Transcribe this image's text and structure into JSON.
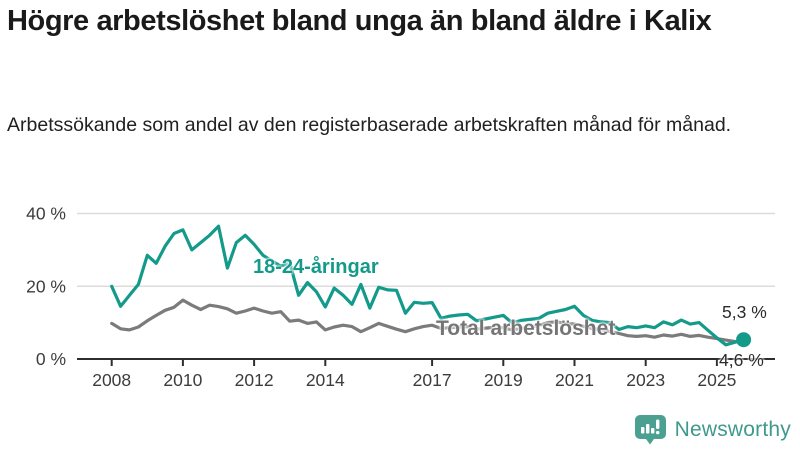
{
  "title": "Högre arbetslöshet bland unga än bland äldre i Kalix",
  "subtitle": "Arbetssökande som andel av den registerbaserade arbetskraften månad för månad.",
  "chart_data": {
    "type": "line",
    "title": "Högre arbetslöshet bland unga än bland äldre i Kalix",
    "xlabel": "",
    "ylabel": "",
    "ylim": [
      0,
      40
    ],
    "grid": "horizontal",
    "legend_position": "inline-labels",
    "yticks": [
      {
        "value": 0,
        "label": "0 %"
      },
      {
        "value": 20,
        "label": "20 %"
      },
      {
        "value": 40,
        "label": "40 %"
      }
    ],
    "xticks": [
      {
        "value": 2008,
        "label": "2008"
      },
      {
        "value": 2010,
        "label": "2010"
      },
      {
        "value": 2012,
        "label": "2012"
      },
      {
        "value": 2014,
        "label": "2014"
      },
      {
        "value": 2017,
        "label": "2017"
      },
      {
        "value": 2019,
        "label": "2019"
      },
      {
        "value": 2021,
        "label": "2021"
      },
      {
        "value": 2023,
        "label": "2023"
      },
      {
        "value": 2025,
        "label": "2025"
      }
    ],
    "x": [
      2008.0,
      2008.25,
      2008.5,
      2008.75,
      2009.0,
      2009.25,
      2009.5,
      2009.75,
      2010.0,
      2010.25,
      2010.5,
      2010.75,
      2011.0,
      2011.25,
      2011.5,
      2011.75,
      2012.0,
      2012.25,
      2012.5,
      2012.75,
      2013.0,
      2013.25,
      2013.5,
      2013.75,
      2014.0,
      2014.25,
      2014.5,
      2014.75,
      2015.0,
      2015.25,
      2015.5,
      2015.75,
      2016.0,
      2016.25,
      2016.5,
      2016.75,
      2017.0,
      2017.25,
      2017.5,
      2017.75,
      2018.0,
      2018.25,
      2018.5,
      2018.75,
      2019.0,
      2019.25,
      2019.5,
      2019.75,
      2020.0,
      2020.25,
      2020.5,
      2020.75,
      2021.0,
      2021.25,
      2021.5,
      2021.75,
      2022.0,
      2022.25,
      2022.5,
      2022.75,
      2023.0,
      2023.25,
      2023.5,
      2023.75,
      2024.0,
      2024.25,
      2024.5,
      2024.75,
      2025.0,
      2025.25,
      2025.5,
      2025.75
    ],
    "series": [
      {
        "name": "18-24-åringar",
        "color": "#149a8b",
        "end_label": "5,3 %",
        "end_value": 5.3,
        "end_dot": true,
        "values": [
          20.0,
          14.5,
          17.5,
          20.5,
          28.5,
          26.3,
          31.0,
          34.5,
          35.5,
          30.0,
          32.0,
          34.0,
          36.5,
          25.0,
          32.0,
          34.0,
          31.5,
          28.5,
          27.0,
          25.5,
          26.5,
          17.5,
          21.0,
          18.5,
          14.3,
          19.5,
          17.5,
          15.0,
          20.5,
          14.0,
          19.7,
          19.0,
          18.9,
          12.6,
          15.6,
          15.3,
          15.5,
          11.2,
          11.8,
          12.1,
          12.3,
          10.5,
          11.0,
          11.5,
          12.0,
          9.9,
          10.6,
          10.9,
          11.2,
          12.6,
          13.1,
          13.6,
          14.5,
          12.0,
          10.6,
          10.2,
          10.0,
          8.1,
          8.9,
          8.6,
          9.1,
          8.6,
          10.2,
          9.4,
          10.7,
          9.6,
          10.0,
          7.9,
          5.8,
          3.9,
          4.6,
          5.3
        ]
      },
      {
        "name": "Total arbetslöshet",
        "color": "#7b7b7b",
        "end_label": "4,6 %",
        "end_value": 4.6,
        "end_dot": false,
        "values": [
          9.8,
          8.3,
          8.0,
          8.8,
          10.5,
          12.0,
          13.4,
          14.2,
          16.2,
          14.8,
          13.6,
          14.8,
          14.4,
          13.8,
          12.6,
          13.2,
          14.0,
          13.2,
          12.6,
          13.0,
          10.4,
          10.7,
          9.8,
          10.2,
          8.0,
          8.8,
          9.3,
          8.9,
          7.5,
          8.6,
          9.8,
          9.0,
          8.2,
          7.5,
          8.3,
          8.9,
          9.3,
          8.4,
          8.6,
          8.8,
          8.9,
          8.2,
          8.5,
          8.7,
          8.6,
          8.0,
          8.4,
          8.8,
          9.2,
          10.0,
          10.2,
          9.8,
          9.6,
          9.0,
          8.4,
          8.0,
          7.6,
          7.0,
          6.4,
          6.2,
          6.4,
          6.0,
          6.6,
          6.3,
          6.8,
          6.2,
          6.5,
          6.0,
          5.6,
          5.2,
          4.8,
          4.6
        ]
      }
    ]
  },
  "branding": {
    "name": "Newsworthy",
    "icon": "bar-chart-speech-bubble-icon",
    "color": "#3e9a8d",
    "icon_color": "#4ca092"
  }
}
